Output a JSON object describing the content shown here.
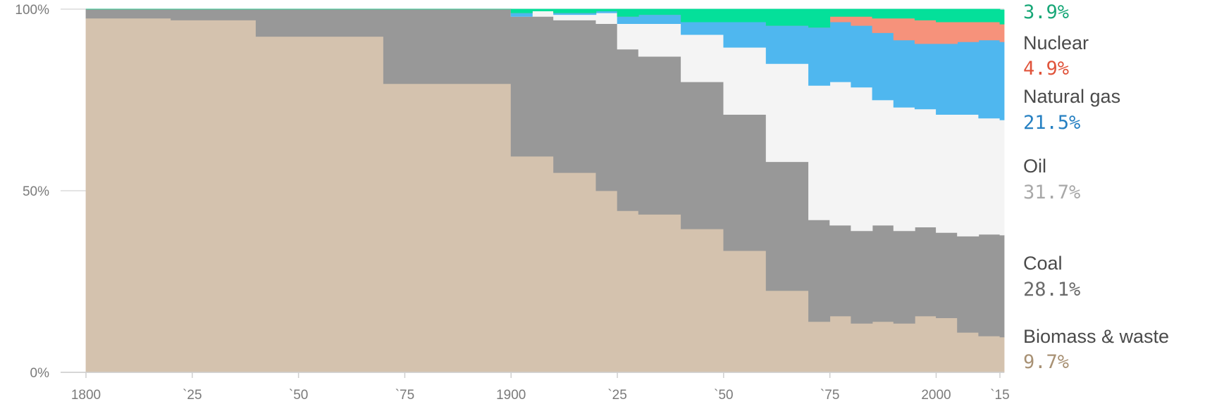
{
  "chart_data": {
    "type": "area",
    "stacking": "percent",
    "step": true,
    "x": [
      1800,
      1810,
      1820,
      1830,
      1840,
      1850,
      1860,
      1870,
      1880,
      1890,
      1900,
      1905,
      1910,
      1915,
      1920,
      1925,
      1930,
      1935,
      1940,
      1945,
      1950,
      1955,
      1960,
      1965,
      1970,
      1975,
      1980,
      1985,
      1990,
      1995,
      2000,
      2005,
      2010,
      2015
    ],
    "xlim": [
      1800,
      2016
    ],
    "ylim": [
      0,
      100
    ],
    "x_ticks": [
      {
        "value": 1800,
        "label": "1800"
      },
      {
        "value": 1825,
        "label": "`25"
      },
      {
        "value": 1850,
        "label": "`50"
      },
      {
        "value": 1875,
        "label": "`75"
      },
      {
        "value": 1900,
        "label": "1900"
      },
      {
        "value": 1925,
        "label": "`25"
      },
      {
        "value": 1950,
        "label": "`50"
      },
      {
        "value": 1975,
        "label": "`75"
      },
      {
        "value": 2000,
        "label": "2000"
      },
      {
        "value": 2015,
        "label": "`15"
      }
    ],
    "y_ticks": [
      {
        "value": 100,
        "label": "100%"
      },
      {
        "value": 50,
        "label": "50%"
      },
      {
        "value": 0,
        "label": "0%"
      }
    ],
    "grid": true,
    "legend_position": "right",
    "series": [
      {
        "name": "Biomass & waste",
        "value_label": "9.7%",
        "color": "#d4c2ae",
        "label_color": "#a89174",
        "values": [
          97.5,
          97.5,
          97.0,
          97.0,
          92.5,
          92.5,
          92.5,
          79.5,
          79.5,
          79.5,
          59.5,
          59.5,
          55.0,
          55.0,
          50.0,
          44.5,
          43.5,
          43.5,
          39.5,
          39.5,
          33.5,
          33.5,
          22.5,
          22.5,
          14.0,
          15.5,
          13.5,
          14.0,
          13.5,
          15.5,
          15.0,
          11.0,
          10.0,
          9.7
        ]
      },
      {
        "name": "Coal",
        "value_label": "28.1%",
        "color": "#989898",
        "label_color": "#6a6a6a",
        "values": [
          2.5,
          2.5,
          3.0,
          3.0,
          7.5,
          7.5,
          7.5,
          20.5,
          20.5,
          20.5,
          38.5,
          38.5,
          42.0,
          42.0,
          46.0,
          44.5,
          43.5,
          43.5,
          40.5,
          40.5,
          37.5,
          37.5,
          35.5,
          35.5,
          28.0,
          25.0,
          25.5,
          26.5,
          25.5,
          24.5,
          23.5,
          26.5,
          28.0,
          28.1
        ]
      },
      {
        "name": "Oil",
        "value_label": "31.7%",
        "color": "#f4f4f4",
        "label_color": "#a8a8a8",
        "values": [
          0,
          0,
          0,
          0,
          0,
          0,
          0,
          0,
          0,
          0,
          0,
          1.5,
          1.5,
          1.5,
          3.0,
          7.0,
          9.0,
          9.0,
          13.0,
          13.0,
          18.5,
          18.5,
          27.0,
          27.0,
          37.0,
          39.5,
          39.5,
          34.5,
          34.0,
          32.5,
          32.5,
          33.5,
          32.0,
          31.7
        ]
      },
      {
        "name": "Natural gas",
        "value_label": "21.5%",
        "color": "#4fb7ef",
        "label_color": "#2680c2",
        "values": [
          0,
          0,
          0,
          0,
          0,
          0,
          0,
          0,
          0,
          0,
          1.0,
          0,
          0.5,
          0.5,
          0.5,
          2.0,
          2.5,
          2.5,
          3.5,
          3.5,
          7.0,
          7.0,
          10.5,
          10.5,
          16.0,
          16.5,
          17.0,
          18.5,
          18.5,
          18.0,
          19.5,
          20.0,
          21.5,
          21.5
        ]
      },
      {
        "name": "Nuclear",
        "value_label": "4.9%",
        "color": "#f6927b",
        "label_color": "#e0533a",
        "values": [
          0,
          0,
          0,
          0,
          0,
          0,
          0,
          0,
          0,
          0,
          0,
          0,
          0,
          0,
          0,
          0,
          0,
          0,
          0,
          0,
          0,
          0,
          0,
          0,
          0,
          1.5,
          2.5,
          4.0,
          6.0,
          6.5,
          6.0,
          5.5,
          5.0,
          4.9
        ]
      },
      {
        "name": "",
        "value_label": "3.9%",
        "color": "#04e09a",
        "label_color": "#17a777",
        "values": [
          0,
          0,
          0,
          0,
          0,
          0,
          0,
          0,
          0,
          0,
          1.0,
          0.5,
          1.0,
          1.0,
          0.5,
          2.0,
          1.5,
          1.5,
          3.5,
          3.5,
          3.5,
          3.5,
          4.5,
          4.5,
          5.0,
          2.0,
          2.0,
          2.5,
          2.5,
          3.0,
          3.5,
          3.5,
          3.5,
          3.9
        ]
      }
    ]
  }
}
